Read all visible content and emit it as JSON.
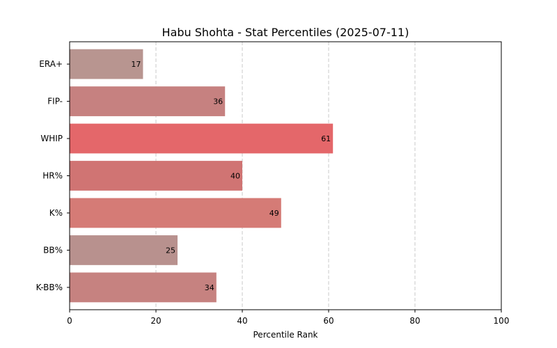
{
  "chart_data": {
    "type": "bar",
    "orientation": "horizontal",
    "title": "Habu Shohta - Stat Percentiles (2025-07-11)",
    "xlabel": "Percentile Rank",
    "ylabel": "",
    "xlim": [
      0,
      100
    ],
    "xticks": [
      0,
      20,
      40,
      60,
      80,
      100
    ],
    "grid": "vertical-dashed",
    "categories": [
      "ERA+",
      "FIP-",
      "WHIP",
      "HR%",
      "K%",
      "BB%",
      "K-BB%"
    ],
    "values": [
      17,
      36,
      61,
      40,
      49,
      25,
      34
    ],
    "colors": [
      "#b89590",
      "#c68180",
      "#e4676a",
      "#d07473",
      "#d57b76",
      "#b8918e",
      "#c68280"
    ]
  }
}
